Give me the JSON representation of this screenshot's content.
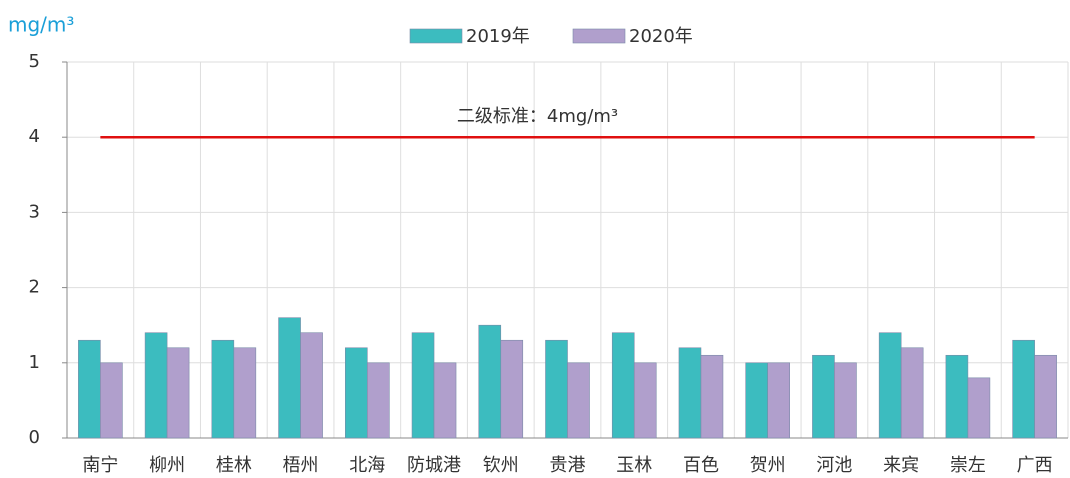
{
  "chart_data": {
    "type": "bar",
    "unit_label": "mg/m³",
    "categories": [
      "南宁",
      "柳州",
      "桂林",
      "梧州",
      "北海",
      "防城港",
      "钦州",
      "贵港",
      "玉林",
      "百色",
      "贺州",
      "河池",
      "来宾",
      "崇左",
      "广西"
    ],
    "series": [
      {
        "name": "2019年",
        "color": "#3cbcbf",
        "values": [
          1.3,
          1.4,
          1.3,
          1.6,
          1.2,
          1.4,
          1.5,
          1.3,
          1.4,
          1.2,
          1.0,
          1.1,
          1.4,
          1.1,
          1.3
        ]
      },
      {
        "name": "2020年",
        "color": "#b09fcc",
        "values": [
          1.0,
          1.2,
          1.2,
          1.4,
          1.0,
          1.0,
          1.3,
          1.0,
          1.0,
          1.1,
          1.0,
          1.0,
          1.2,
          0.8,
          1.1
        ]
      }
    ],
    "reference_line": {
      "value": 4,
      "label": "二级标准：4mg/m³",
      "color": "#e01010"
    },
    "ylim": [
      0,
      5
    ],
    "yticks": [
      0,
      1,
      2,
      3,
      4,
      5
    ],
    "grid": true,
    "legend": "top"
  }
}
